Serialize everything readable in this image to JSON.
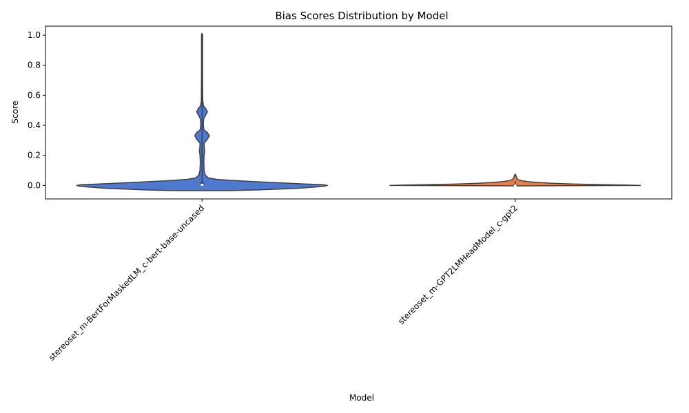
{
  "chart_data": {
    "type": "violin",
    "title": "Bias Scores Distribution by Model",
    "xlabel": "Model",
    "ylabel": "Score",
    "ylim": [
      -0.09,
      1.06
    ],
    "yticks": [
      0.0,
      0.2,
      0.4,
      0.6,
      0.8,
      1.0
    ],
    "ytick_labels": [
      "0.0",
      "0.2",
      "0.4",
      "0.6",
      "0.8",
      "1.0"
    ],
    "grid": false,
    "categories": [
      "stereoset_m-BertForMaskedLM_c-bert-base-uncased",
      "stereoset_m-GPT2LMHeadModel_c-gpt2"
    ],
    "colors": [
      "#4f78cf",
      "#e5804a"
    ],
    "violins": [
      {
        "category": "stereoset_m-BertForMaskedLM_c-bert-base-uncased",
        "min": -0.035,
        "max": 1.01,
        "q1": 0.0,
        "median": 0.005,
        "q3": 0.02,
        "whisker_low": 0.0,
        "whisker_high": 1.0,
        "density": [
          [
            -0.035,
            0.2
          ],
          [
            -0.03,
            0.45
          ],
          [
            -0.02,
            0.75
          ],
          [
            -0.01,
            0.92
          ],
          [
            -0.005,
            0.98
          ],
          [
            0.0,
            1.0
          ],
          [
            0.005,
            0.96
          ],
          [
            0.01,
            0.82
          ],
          [
            0.02,
            0.55
          ],
          [
            0.03,
            0.3
          ],
          [
            0.04,
            0.12
          ],
          [
            0.05,
            0.05
          ],
          [
            0.07,
            0.025
          ],
          [
            0.1,
            0.017
          ],
          [
            0.15,
            0.014
          ],
          [
            0.2,
            0.016
          ],
          [
            0.23,
            0.022
          ],
          [
            0.25,
            0.018
          ],
          [
            0.28,
            0.016
          ],
          [
            0.31,
            0.045
          ],
          [
            0.33,
            0.058
          ],
          [
            0.35,
            0.045
          ],
          [
            0.37,
            0.015
          ],
          [
            0.4,
            0.01
          ],
          [
            0.44,
            0.012
          ],
          [
            0.47,
            0.03
          ],
          [
            0.49,
            0.043
          ],
          [
            0.51,
            0.03
          ],
          [
            0.53,
            0.012
          ],
          [
            0.56,
            0.006
          ],
          [
            0.62,
            0.005
          ],
          [
            0.75,
            0.004
          ],
          [
            0.9,
            0.004
          ],
          [
            1.0,
            0.004
          ],
          [
            1.01,
            0.002
          ]
        ]
      },
      {
        "category": "stereoset_m-GPT2LMHeadModel_c-gpt2",
        "min": -0.003,
        "max": 0.075,
        "q1": 0.0,
        "median": 0.0,
        "q3": 0.01,
        "whisker_low": 0.0,
        "whisker_high": 0.03,
        "density": [
          [
            -0.003,
            0.0
          ],
          [
            -0.001,
            0.6
          ],
          [
            0.0,
            1.0
          ],
          [
            0.002,
            0.9
          ],
          [
            0.005,
            0.7
          ],
          [
            0.01,
            0.45
          ],
          [
            0.015,
            0.28
          ],
          [
            0.02,
            0.18
          ],
          [
            0.025,
            0.1
          ],
          [
            0.03,
            0.06
          ],
          [
            0.035,
            0.035
          ],
          [
            0.04,
            0.02
          ],
          [
            0.05,
            0.012
          ],
          [
            0.06,
            0.008
          ],
          [
            0.07,
            0.005
          ],
          [
            0.075,
            0.0
          ]
        ]
      }
    ]
  }
}
